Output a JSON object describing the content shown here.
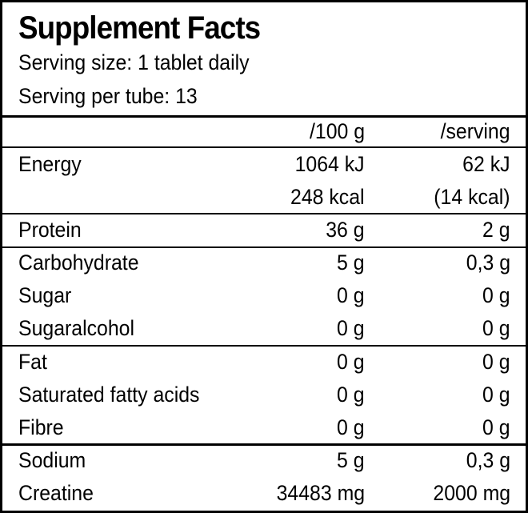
{
  "title": "Supplement Facts",
  "serving_size": "Serving size: 1 tablet daily",
  "serving_per": "Serving per tube: 13",
  "header": {
    "col2": "/100 g",
    "col3": "/serving"
  },
  "rows": [
    {
      "name": "Energy",
      "per100": "1064 kJ",
      "serving": "62 kJ"
    },
    {
      "name": "",
      "per100": "248 kcal",
      "serving": "(14 kcal)"
    },
    {
      "name": "Protein",
      "per100": "36 g",
      "serving": "2 g"
    },
    {
      "name": "Carbohydrate",
      "per100": "5 g",
      "serving": "0,3 g"
    },
    {
      "name": "Sugar",
      "per100": "0 g",
      "serving": "0 g"
    },
    {
      "name": "Sugaralcohol",
      "per100": "0 g",
      "serving": "0 g"
    },
    {
      "name": "Fat",
      "per100": "0 g",
      "serving": "0 g"
    },
    {
      "name": "Saturated fatty acids",
      "per100": "0 g",
      "serving": "0 g"
    },
    {
      "name": "Fibre",
      "per100": "0 g",
      "serving": "0 g"
    },
    {
      "name": "Sodium",
      "per100": "5 g",
      "serving": "0,3 g"
    },
    {
      "name": "Creatine",
      "per100": "34483 mg",
      "serving": "2000 mg"
    }
  ]
}
